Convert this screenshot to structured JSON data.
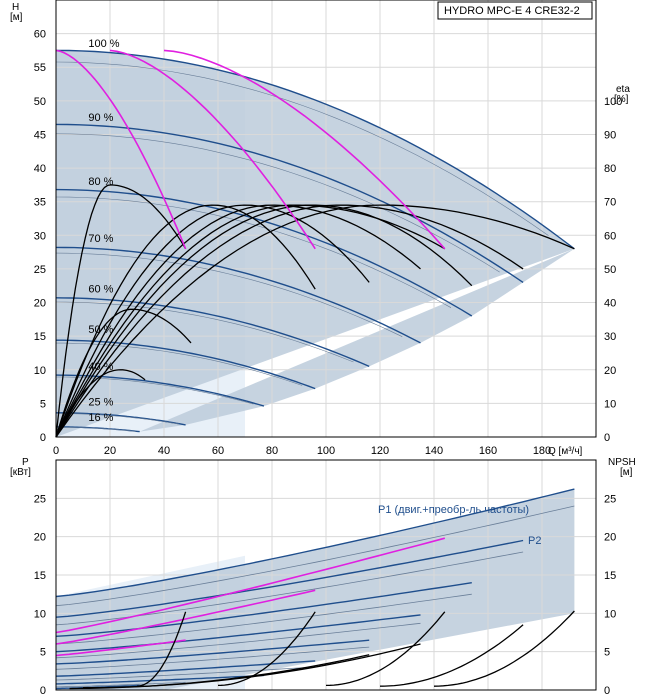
{
  "chart_data": [
    {
      "type": "line",
      "title": "HYDRO MPC-E 4 CRE32-2",
      "xlabel": "Q [м³/ч]",
      "ylabel": "H\n[м]",
      "y2label": "eta\n[%]",
      "xlim": [
        0,
        200
      ],
      "ylim": [
        0,
        65
      ],
      "y2lim": [
        0,
        130
      ],
      "xticks": [
        "0",
        "20",
        "40",
        "60",
        "80",
        "100",
        "120",
        "140",
        "160",
        "180"
      ],
      "yticks": [
        "0",
        "5",
        "10",
        "15",
        "20",
        "25",
        "30",
        "35",
        "40",
        "45",
        "50",
        "55",
        "60"
      ],
      "y2ticks": [
        "0",
        "10",
        "20",
        "30",
        "40",
        "50",
        "60",
        "70",
        "80",
        "90",
        "100"
      ],
      "grid": true,
      "speed_labels": [
        {
          "text": "100 %",
          "q": 12,
          "h": 58.0
        },
        {
          "text": "90 %",
          "q": 12,
          "h": 47.0
        },
        {
          "text": "80 %",
          "q": 12,
          "h": 37.5
        },
        {
          "text": "70 %",
          "q": 12,
          "h": 29.0
        },
        {
          "text": "60 %",
          "q": 12,
          "h": 21.5
        },
        {
          "text": "50 %",
          "q": 12,
          "h": 15.5
        },
        {
          "text": "40 %",
          "q": 12,
          "h": 10.0
        },
        {
          "text": "25 %",
          "q": 12,
          "h": 4.7
        },
        {
          "text": "16 %",
          "q": 12,
          "h": 2.4
        }
      ],
      "system_curves": [
        {
          "speed": 100,
          "h0": 57.5,
          "qmax": 192,
          "hend": 28
        },
        {
          "speed": 90,
          "h0": 46.5,
          "qmax": 173,
          "hend": 23
        },
        {
          "speed": 80,
          "h0": 36.8,
          "qmax": 154,
          "hend": 18
        },
        {
          "speed": 70,
          "h0": 28.2,
          "qmax": 135,
          "hend": 14
        },
        {
          "speed": 60,
          "h0": 20.7,
          "qmax": 116,
          "hend": 10.5
        },
        {
          "speed": 50,
          "h0": 14.4,
          "qmax": 96,
          "hend": 7.2
        },
        {
          "speed": 40,
          "h0": 9.2,
          "qmax": 77,
          "hend": 4.6
        },
        {
          "speed": 25,
          "h0": 3.6,
          "qmax": 48,
          "hend": 1.8
        },
        {
          "speed": 16,
          "h0": 1.5,
          "qmax": 31,
          "hend": 0.8
        }
      ],
      "efficiency_curves": [
        {
          "qmax": 192,
          "peak": 69,
          "qpeak": 120,
          "end": 56
        },
        {
          "qmax": 173,
          "peak": 69,
          "qpeak": 105,
          "end": 50
        },
        {
          "qmax": 154,
          "peak": 69,
          "qpeak": 95,
          "end": 45
        },
        {
          "qmax": 144,
          "peak": 69,
          "qpeak": 88,
          "end": 56
        },
        {
          "qmax": 135,
          "peak": 69,
          "qpeak": 80,
          "end": 50
        },
        {
          "qmax": 116,
          "peak": 69,
          "qpeak": 70,
          "end": 46
        },
        {
          "qmax": 96,
          "peak": 69,
          "qpeak": 58,
          "end": 44
        },
        {
          "qmax": 48,
          "peak": 75,
          "qpeak": 20,
          "end": 56
        },
        {
          "qmax": 50,
          "peak": 38,
          "qpeak": 28,
          "end": 28
        },
        {
          "qmax": 33,
          "peak": 20,
          "qpeak": 24,
          "end": 17
        }
      ],
      "magenta_curves": [
        {
          "q0": 0,
          "h0": 57.5,
          "q1": 48,
          "h1": 28
        },
        {
          "q0": 20,
          "h0": 57.5,
          "q1": 96,
          "h1": 28
        },
        {
          "q0": 40,
          "h0": 57.5,
          "q1": 144,
          "h1": 28
        }
      ]
    },
    {
      "type": "line",
      "xlabel": "",
      "ylabel": "P\n[кВт]",
      "y2label": "NPSH\n[м]",
      "xlim": [
        0,
        200
      ],
      "ylim": [
        0,
        30
      ],
      "y2lim": [
        0,
        30
      ],
      "yticks": [
        "0",
        "5",
        "10",
        "15",
        "20",
        "25"
      ],
      "y2ticks": [
        "0",
        "5",
        "10",
        "15",
        "20",
        "25"
      ],
      "grid": true,
      "annotations": [
        "P1 (двиг.+преобр-ль частоты)",
        "P2"
      ],
      "power_curves": [
        {
          "y0": 12.2,
          "y1": 26.2,
          "qmax": 192
        },
        {
          "y0": 11.0,
          "y1": 24.0,
          "qmax": 192
        },
        {
          "y0": 9.5,
          "y1": 19.5,
          "qmax": 173
        },
        {
          "y0": 8.5,
          "y1": 18.0,
          "qmax": 173
        },
        {
          "y0": 7.0,
          "y1": 14.0,
          "qmax": 154
        },
        {
          "y0": 6.0,
          "y1": 12.5,
          "qmax": 154
        },
        {
          "y0": 5.0,
          "y1": 9.8,
          "qmax": 135
        },
        {
          "y0": 4.2,
          "y1": 8.7,
          "qmax": 135
        },
        {
          "y0": 3.4,
          "y1": 6.5,
          "qmax": 116
        },
        {
          "y0": 2.7,
          "y1": 5.6,
          "qmax": 116
        },
        {
          "y0": 1.8,
          "y1": 3.8,
          "qmax": 96
        },
        {
          "y0": 1.3,
          "y1": 3.0,
          "qmax": 96
        },
        {
          "y0": 0.8,
          "y1": 1.9,
          "qmax": 77
        },
        {
          "y0": 0.4,
          "y1": 1.0,
          "qmax": 48
        },
        {
          "y0": 0.2,
          "y1": 0.6,
          "qmax": 31
        }
      ],
      "magenta_power": [
        {
          "y0": 7.5,
          "y1": 19.8,
          "q0": 0,
          "q1": 144
        },
        {
          "y0": 6.0,
          "y1": 13.0,
          "q0": 0,
          "q1": 96
        },
        {
          "y0": 4.5,
          "y1": 6.5,
          "q0": 0,
          "q1": 48
        }
      ],
      "npsh_curves": [
        {
          "q0": 30,
          "y0": 0.5,
          "q1": 48,
          "y1": 10.2
        },
        {
          "q0": 60,
          "y0": 0.6,
          "q1": 96,
          "y1": 10.2
        },
        {
          "q0": 100,
          "y0": 0.6,
          "q1": 144,
          "y1": 10.2
        },
        {
          "q0": 120,
          "y0": 0.5,
          "q1": 173,
          "y1": 8.5
        },
        {
          "q0": 140,
          "y0": 0.5,
          "q1": 192,
          "y1": 10.3
        },
        {
          "q0": 10,
          "y0": 0.3,
          "q1": 135,
          "y1": 6.0
        },
        {
          "q0": 5,
          "y0": 0.2,
          "q1": 116,
          "y1": 4.6
        }
      ]
    }
  ],
  "colors": {
    "band": "#bccbdb",
    "band_light": "#e8f0f8",
    "curve_blue": "#1f4e8c",
    "curve_thin": "#6a7f99",
    "curve_black": "#000000",
    "magenta": "#e020e0",
    "grid": "#d9d9d9"
  }
}
